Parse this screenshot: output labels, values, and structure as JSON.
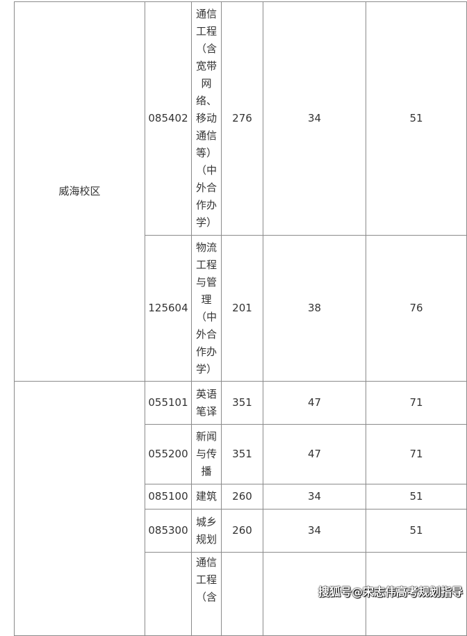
{
  "groups": [
    {
      "campus": "威海校区",
      "rows": [
        {
          "code": "085402",
          "major": "通信工程（含宽带网络、移动通信等）（中外合作办学）",
          "total": "276",
          "single1": "34",
          "single2": "51"
        },
        {
          "code": "125604",
          "major": "物流工程与管理（中外合作办学）",
          "total": "201",
          "single1": "38",
          "single2": "76"
        }
      ]
    },
    {
      "campus": "",
      "rows": [
        {
          "code": "055101",
          "major": "英语笔译",
          "total": "351",
          "single1": "47",
          "single2": "71"
        },
        {
          "code": "055200",
          "major": "新闻与传播",
          "total": "351",
          "single1": "47",
          "single2": "71"
        },
        {
          "code": "085100",
          "major": "建筑",
          "total": "260",
          "single1": "34",
          "single2": "51"
        },
        {
          "code": "085300",
          "major": "城乡规划",
          "total": "260",
          "single1": "34",
          "single2": "51"
        },
        {
          "code": "",
          "major": "通信工程（含",
          "total": "",
          "single1": "",
          "single2": ""
        }
      ]
    }
  ],
  "watermark": "搜狐号@宋志伟高考规划指导"
}
